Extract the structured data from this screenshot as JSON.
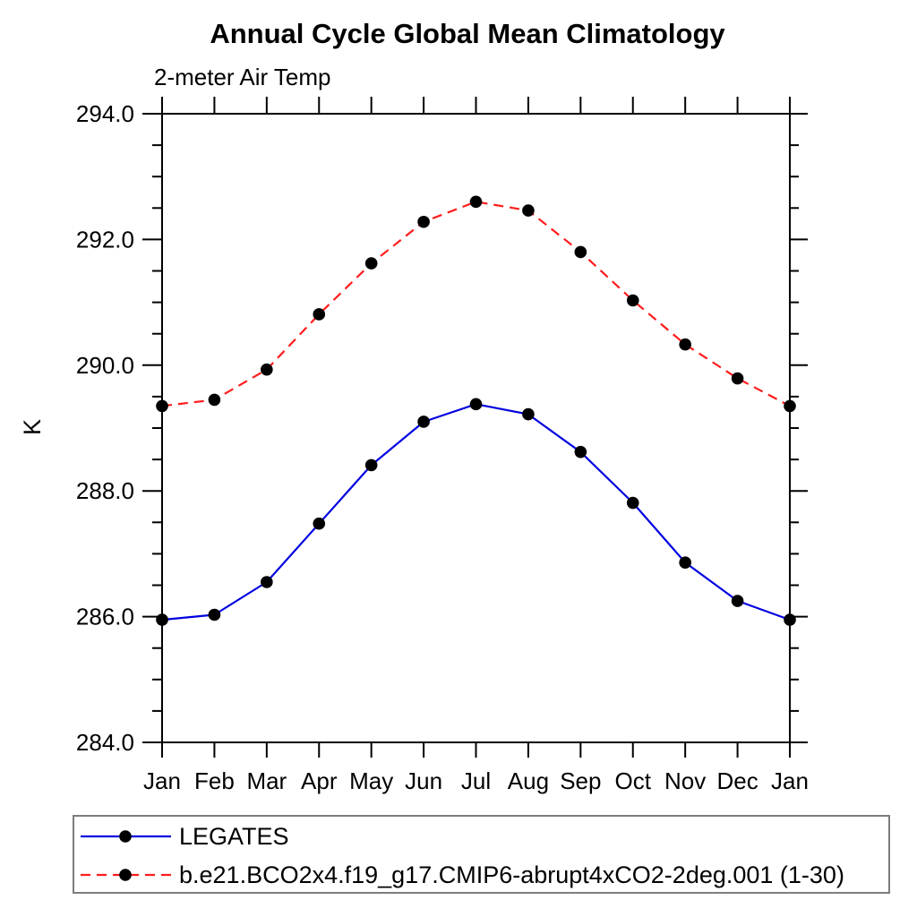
{
  "title": "Annual Cycle Global Mean Climatology",
  "subtitle": "2-meter Air Temp",
  "chart_data": {
    "type": "line",
    "title": "Annual Cycle Global Mean Climatology",
    "subtitle": "2-meter Air Temp",
    "xlabel": "",
    "ylabel": "K",
    "categories": [
      "Jan",
      "Feb",
      "Mar",
      "Apr",
      "May",
      "Jun",
      "Jul",
      "Aug",
      "Sep",
      "Oct",
      "Nov",
      "Dec",
      "Jan"
    ],
    "ylim": [
      284.0,
      294.0
    ],
    "ytick_major": [
      284.0,
      286.0,
      288.0,
      290.0,
      292.0,
      294.0
    ],
    "ytick_minor_step": 0.5,
    "ytick_label_format": "one-decimal",
    "grid": false,
    "legend_position": "bottom-left-box",
    "frame": "closed-box-outward-ticks",
    "series": [
      {
        "name": "LEGATES",
        "line_style": "solid",
        "line_color": "#0000e0",
        "marker": "filled-circle",
        "marker_color": "#000000",
        "values": [
          285.95,
          286.03,
          286.55,
          287.48,
          288.41,
          289.1,
          289.38,
          289.22,
          288.62,
          287.81,
          286.86,
          286.25,
          285.95
        ]
      },
      {
        "name": "b.e21.BCO2x4.f19_g17.CMIP6-abrupt4xCO2-2deg.001 (1-30)",
        "line_style": "dashed",
        "line_color": "#ff1c1c",
        "marker": "filled-circle",
        "marker_color": "#000000",
        "values": [
          289.35,
          289.45,
          289.93,
          290.81,
          291.62,
          292.28,
          292.6,
          292.46,
          291.8,
          291.03,
          290.33,
          289.79,
          289.35
        ]
      }
    ]
  },
  "colors": {
    "background": "#ffffff",
    "axis": "#000000",
    "text": "#000000",
    "legend_border": "#7d7d7d",
    "series_blue": "#0000e0",
    "series_red": "#ff1c1c",
    "marker": "#000000"
  }
}
